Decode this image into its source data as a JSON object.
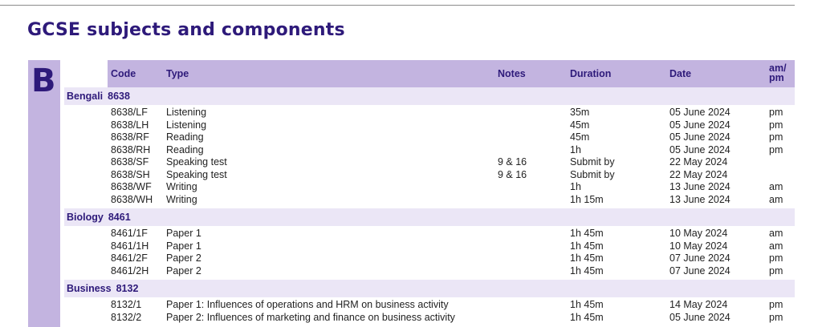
{
  "page": {
    "title": "GCSE subjects and components",
    "section_letter": "B"
  },
  "table": {
    "headers": {
      "code": "Code",
      "type": "Type",
      "notes": "Notes",
      "duration": "Duration",
      "date": "Date",
      "ampm_line1": "am/",
      "ampm_line2": "pm"
    },
    "groups": [
      {
        "subject": "Bengali",
        "code": "8638",
        "rows": [
          {
            "code": "8638/LF",
            "type": "Listening",
            "notes": "",
            "duration": "35m",
            "date": "05 June 2024",
            "ampm": "pm"
          },
          {
            "code": "8638/LH",
            "type": "Listening",
            "notes": "",
            "duration": "45m",
            "date": "05 June 2024",
            "ampm": "pm"
          },
          {
            "code": "8638/RF",
            "type": "Reading",
            "notes": "",
            "duration": "45m",
            "date": "05 June 2024",
            "ampm": "pm"
          },
          {
            "code": "8638/RH",
            "type": "Reading",
            "notes": "",
            "duration": "1h",
            "date": "05 June 2024",
            "ampm": "pm"
          },
          {
            "code": "8638/SF",
            "type": "Speaking test",
            "notes": "9 & 16",
            "duration": "Submit by",
            "date": "22 May 2024",
            "ampm": ""
          },
          {
            "code": "8638/SH",
            "type": "Speaking test",
            "notes": "9 & 16",
            "duration": "Submit by",
            "date": "22 May 2024",
            "ampm": ""
          },
          {
            "code": "8638/WF",
            "type": "Writing",
            "notes": "",
            "duration": "1h",
            "date": "13 June 2024",
            "ampm": "am"
          },
          {
            "code": "8638/WH",
            "type": "Writing",
            "notes": "",
            "duration": "1h 15m",
            "date": "13 June 2024",
            "ampm": "am"
          }
        ]
      },
      {
        "subject": "Biology",
        "code": "8461",
        "rows": [
          {
            "code": "8461/1F",
            "type": "Paper 1",
            "notes": "",
            "duration": "1h 45m",
            "date": "10 May 2024",
            "ampm": "am"
          },
          {
            "code": "8461/1H",
            "type": "Paper 1",
            "notes": "",
            "duration": "1h 45m",
            "date": "10 May 2024",
            "ampm": "am"
          },
          {
            "code": "8461/2F",
            "type": "Paper 2",
            "notes": "",
            "duration": "1h 45m",
            "date": "07 June 2024",
            "ampm": "pm"
          },
          {
            "code": "8461/2H",
            "type": "Paper 2",
            "notes": "",
            "duration": "1h 45m",
            "date": "07 June 2024",
            "ampm": "pm"
          }
        ]
      },
      {
        "subject": "Business",
        "code": "8132",
        "rows": [
          {
            "code": "8132/1",
            "type": "Paper 1: Influences of operations and HRM on business activity",
            "notes": "",
            "duration": "1h 45m",
            "date": "14 May 2024",
            "ampm": "pm"
          },
          {
            "code": "8132/2",
            "type": "Paper 2: Influences of marketing and finance on business activity",
            "notes": "",
            "duration": "1h 45m",
            "date": "05 June 2024",
            "ampm": "pm"
          }
        ]
      }
    ]
  },
  "colors": {
    "title": "#2e1a7a",
    "header_bg": "#c3b4e0",
    "group_bg": "#ebe6f6"
  }
}
